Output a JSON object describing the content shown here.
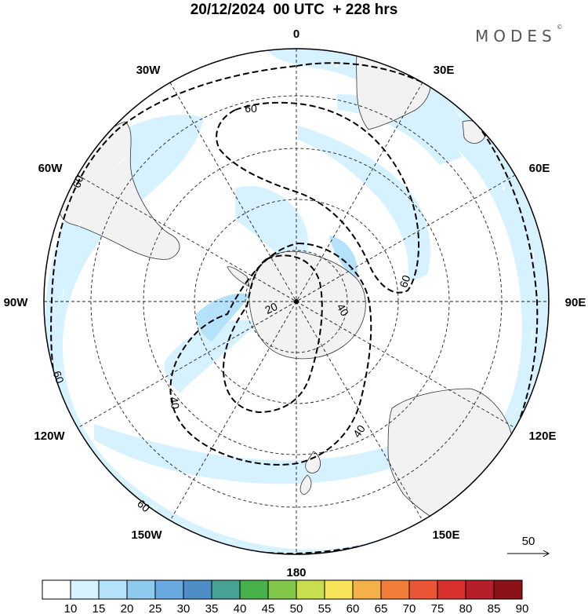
{
  "header": {
    "title": "20/12/2024  00 UTC  + 228 hrs",
    "brand": "MODES",
    "brand_mark": "©"
  },
  "map": {
    "projection": "south polar stereographic",
    "longitude_labels": [
      "0",
      "30E",
      "60E",
      "90E",
      "120E",
      "150E",
      "180",
      "150W",
      "120W",
      "90W",
      "60W",
      "30W"
    ],
    "contour_labels": [
      "60",
      "60",
      "60",
      "60",
      "60",
      "20",
      "40",
      "40",
      "40"
    ],
    "ref_vector_label": "50"
  },
  "legend": {
    "levels": [
      "10",
      "15",
      "20",
      "25",
      "30",
      "35",
      "40",
      "45",
      "50",
      "55",
      "60",
      "65",
      "70",
      "75",
      "80",
      "85",
      "90"
    ],
    "colors": [
      "#ffffff",
      "#d6f1ff",
      "#b4e2fa",
      "#8fc9ee",
      "#6aa9e0",
      "#4d8cc4",
      "#45a295",
      "#47b24c",
      "#82c748",
      "#c9de4e",
      "#f7e25a",
      "#f5b04a",
      "#f17d38",
      "#ea5535",
      "#d7302f",
      "#b41f29",
      "#8b1218"
    ]
  }
}
